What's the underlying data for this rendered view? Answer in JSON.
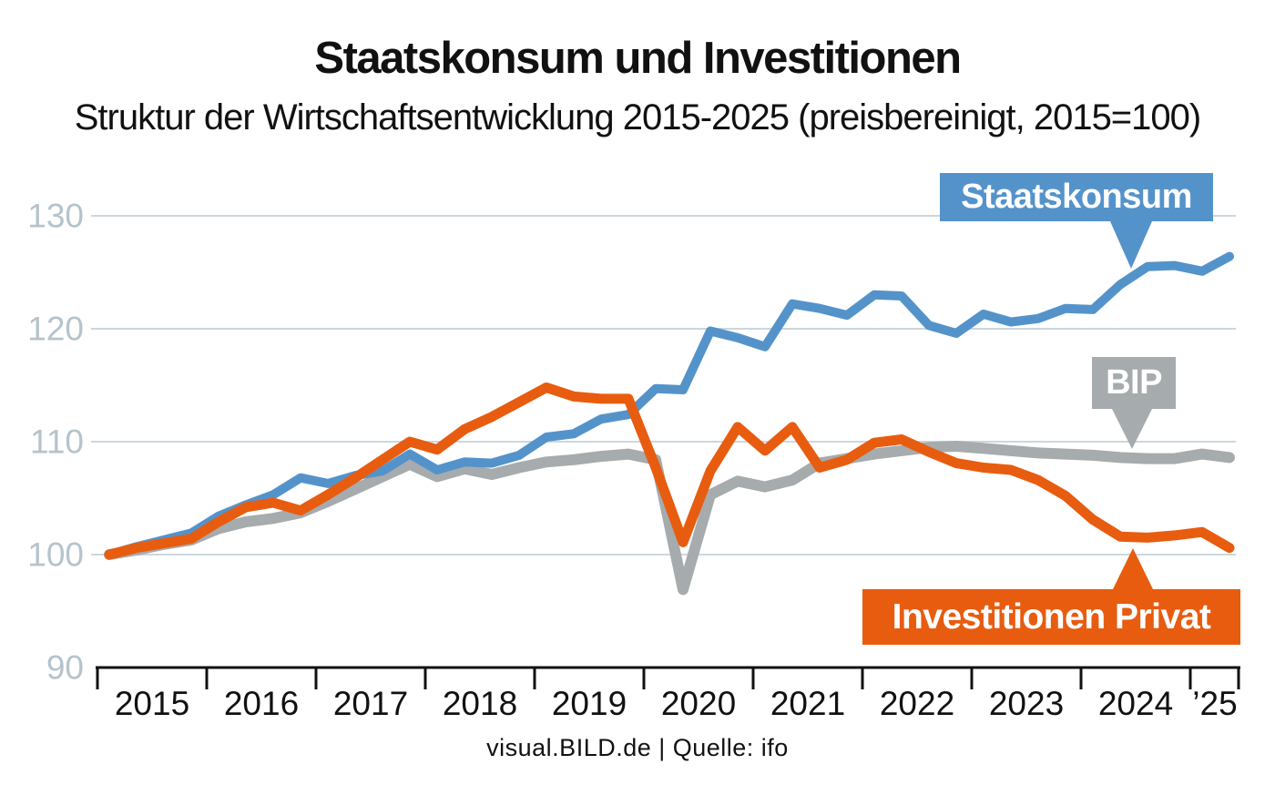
{
  "theme": {
    "background": "#ffffff",
    "grid": "#ccd7dd",
    "axis": "#111111",
    "y_tick_label_color": "#b5c3cc",
    "year_label_color": "#111111",
    "callout_text_color": "#ffffff",
    "title_color": "#111111"
  },
  "chart_data": {
    "type": "line",
    "title": "Staatskonsum und Investitionen",
    "subtitle": "Struktur der Wirtschaftsentwicklung 2015-2025 (preisbereinigt, 2015=100)",
    "index_base": "2015=100",
    "frequency": "quarterly",
    "x_start": "2015 Q1",
    "x_end": "2025 Q2",
    "x_tick_labels": [
      "2015",
      "2016",
      "2017",
      "2018",
      "2019",
      "2020",
      "2021",
      "2022",
      "2023",
      "2024",
      "’25"
    ],
    "y_ticks": [
      130,
      120,
      110,
      100,
      90
    ],
    "grid_values": [
      130,
      120,
      110,
      100
    ],
    "ylim": [
      90,
      133
    ],
    "grid": true,
    "legend_position": "inline-callouts",
    "series": [
      {
        "name": "BIP",
        "color": "#a6abad",
        "values": [
          100,
          100.4,
          100.9,
          101.3,
          102.3,
          102.9,
          103.2,
          103.7,
          104.7,
          105.8,
          106.9,
          108.0,
          106.9,
          107.6,
          107.1,
          107.7,
          108.2,
          108.4,
          108.7,
          108.9,
          108.4,
          96.9,
          105.3,
          106.5,
          106.0,
          106.6,
          108.1,
          108.5,
          108.9,
          109.2,
          109.5,
          109.6,
          109.4,
          109.2,
          109.0,
          108.9,
          108.8,
          108.6,
          108.5,
          108.5,
          108.9,
          108.6
        ]
      },
      {
        "name": "Staatskonsum",
        "color": "#5493ca",
        "values": [
          100,
          100.7,
          101.3,
          101.9,
          103.4,
          104.4,
          105.3,
          106.8,
          106.3,
          107.0,
          107.4,
          108.9,
          107.5,
          108.2,
          108.1,
          108.8,
          110.4,
          110.7,
          112.0,
          112.4,
          114.7,
          114.6,
          119.8,
          119.2,
          118.4,
          122.2,
          121.8,
          121.2,
          123.0,
          122.9,
          120.3,
          119.6,
          121.3,
          120.6,
          120.9,
          121.8,
          121.7,
          123.9,
          125.5,
          125.6,
          125.1,
          126.4
        ]
      },
      {
        "name": "Investitionen Privat",
        "color": "#e85c10",
        "values": [
          100,
          100.6,
          101.0,
          101.4,
          102.9,
          104.2,
          104.6,
          103.9,
          105.3,
          106.8,
          108.4,
          110.0,
          109.3,
          111.1,
          112.2,
          113.5,
          114.8,
          114.0,
          113.8,
          113.8,
          107.7,
          101.1,
          107.4,
          111.3,
          109.2,
          111.3,
          107.7,
          108.4,
          109.9,
          110.2,
          109.1,
          108.1,
          107.7,
          107.5,
          106.6,
          105.2,
          103.1,
          101.6,
          101.5,
          101.7,
          102.0,
          100.6
        ]
      }
    ]
  },
  "footer": {
    "text": "visual.BILD.de | Quelle: ifo"
  }
}
